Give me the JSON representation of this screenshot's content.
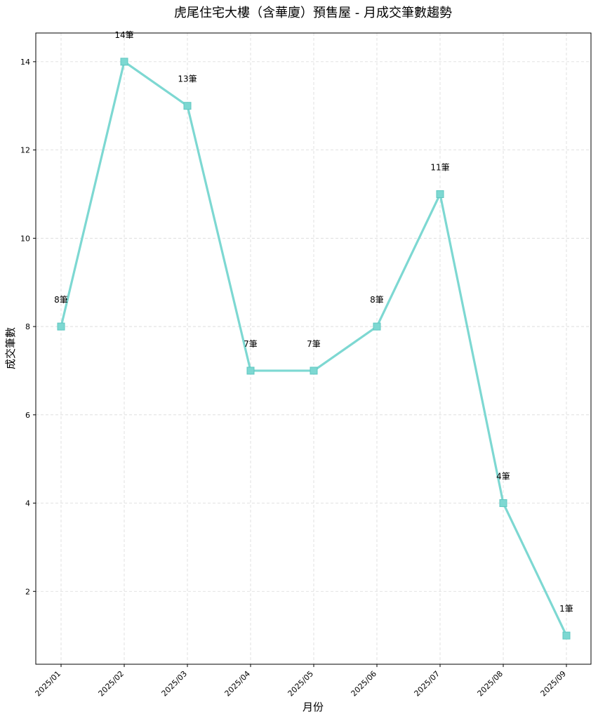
{
  "chart_data": {
    "type": "line",
    "title": "虎尾住宅大樓（含華廈）預售屋 - 月成交筆數趨勢",
    "xlabel": "月份",
    "ylabel": "成交筆數",
    "categories": [
      "2025/01",
      "2025/02",
      "2025/03",
      "2025/04",
      "2025/05",
      "2025/06",
      "2025/07",
      "2025/08",
      "2025/09"
    ],
    "series": [
      {
        "values": [
          8,
          14,
          13,
          7,
          7,
          8,
          11,
          4,
          1
        ]
      }
    ],
    "data_labels": [
      "8筆",
      "14筆",
      "13筆",
      "7筆",
      "7筆",
      "8筆",
      "11筆",
      "4筆",
      "1筆"
    ],
    "yticks": [
      2,
      4,
      6,
      8,
      10,
      12,
      14
    ],
    "ylim": [
      0.35,
      14.65
    ],
    "grid": true,
    "marker": "square",
    "color": "#7dd8d2"
  }
}
